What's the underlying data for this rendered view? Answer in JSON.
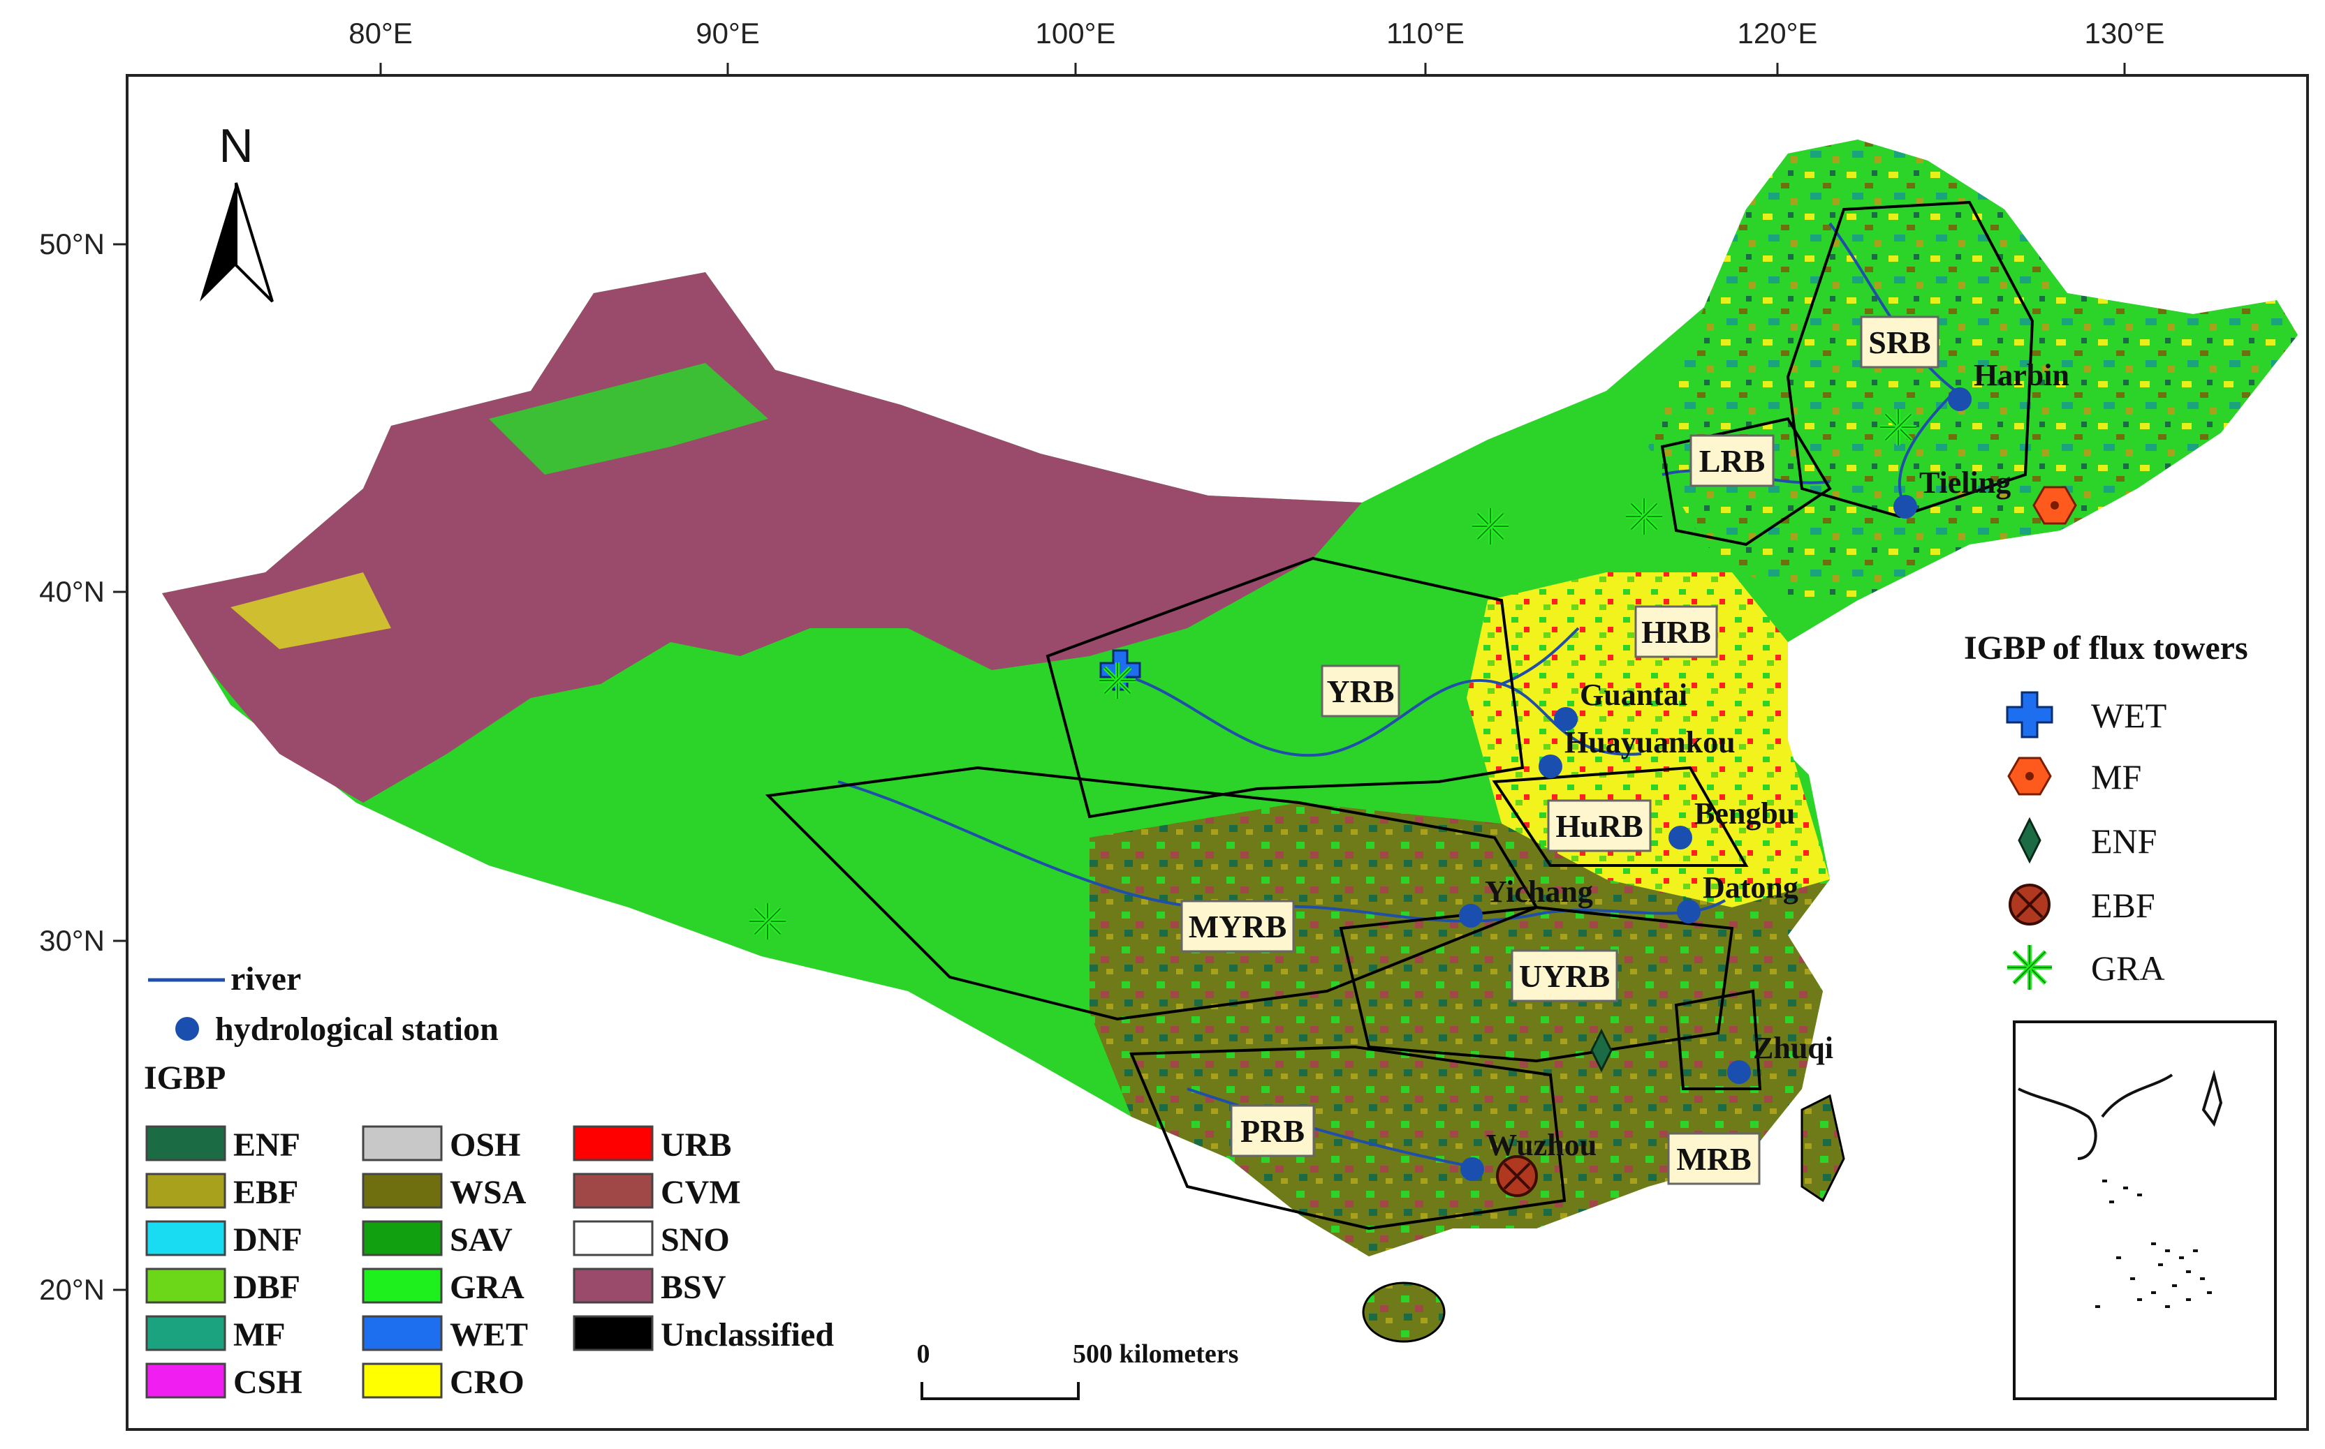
{
  "axes": {
    "x_ticks": [
      "80°E",
      "90°E",
      "100°E",
      "110°E",
      "120°E",
      "130°E"
    ],
    "y_ticks": [
      "50°N",
      "40°N",
      "30°N",
      "20°N"
    ]
  },
  "north_arrow": {
    "label": "N"
  },
  "scale_bar": {
    "start_label": "0",
    "end_label": "500 kilometers"
  },
  "basins": [
    {
      "id": "SRB",
      "label": "SRB"
    },
    {
      "id": "LRB",
      "label": "LRB"
    },
    {
      "id": "HRB",
      "label": "HRB"
    },
    {
      "id": "YRB",
      "label": "YRB"
    },
    {
      "id": "HuRB",
      "label": "HuRB"
    },
    {
      "id": "MYRB",
      "label": "MYRB"
    },
    {
      "id": "UYRB",
      "label": "UYRB"
    },
    {
      "id": "PRB",
      "label": "PRB"
    },
    {
      "id": "MRB",
      "label": "MRB"
    }
  ],
  "stations": [
    {
      "label": "Harbin"
    },
    {
      "label": "Tieling"
    },
    {
      "label": "Guantai"
    },
    {
      "label": "Huayuankou"
    },
    {
      "label": "Bengbu"
    },
    {
      "label": "Datong"
    },
    {
      "label": "Yichang"
    },
    {
      "label": "Zhuqi"
    },
    {
      "label": "Wuzhou"
    }
  ],
  "line_legend": {
    "river_label": "river",
    "station_label": "hydrological station",
    "river_color": "#1f4fa8",
    "station_color": "#1a4fb0"
  },
  "igbp_legend": {
    "title": "IGBP",
    "classes": [
      {
        "code": "ENF",
        "color": "#1b6b45"
      },
      {
        "code": "EBF",
        "color": "#a8a11c"
      },
      {
        "code": "DNF",
        "color": "#19dcf2"
      },
      {
        "code": "DBF",
        "color": "#6cd619"
      },
      {
        "code": "MF",
        "color": "#1aa37e"
      },
      {
        "code": "CSH",
        "color": "#f01ef0"
      },
      {
        "code": "OSH",
        "color": "#c8c8c8"
      },
      {
        "code": "WSA",
        "color": "#6f6f10"
      },
      {
        "code": "SAV",
        "color": "#10a010"
      },
      {
        "code": "GRA",
        "color": "#1ef01e"
      },
      {
        "code": "WET",
        "color": "#1e6ef0"
      },
      {
        "code": "CRO",
        "color": "#ffff00"
      },
      {
        "code": "URB",
        "color": "#ff0000"
      },
      {
        "code": "CVM",
        "color": "#a04848"
      },
      {
        "code": "SNO",
        "color": "#ffffff"
      },
      {
        "code": "BSV",
        "color": "#9a4a6a"
      },
      {
        "code": "Unclassified",
        "color": "#000000"
      }
    ]
  },
  "tower_legend": {
    "title": "IGBP of flux towers",
    "items": [
      {
        "label": "WET",
        "icon": "cross-icon",
        "color": "#1e6ef0"
      },
      {
        "label": "MF",
        "icon": "hexagon-icon",
        "color": "#ff5a1e"
      },
      {
        "label": "ENF",
        "icon": "diamond-icon",
        "color": "#1b6b45"
      },
      {
        "label": "EBF",
        "icon": "circle-x-icon",
        "color": "#b0381e"
      },
      {
        "label": "GRA",
        "icon": "asterisk-icon",
        "color": "#1ef01e"
      }
    ]
  }
}
